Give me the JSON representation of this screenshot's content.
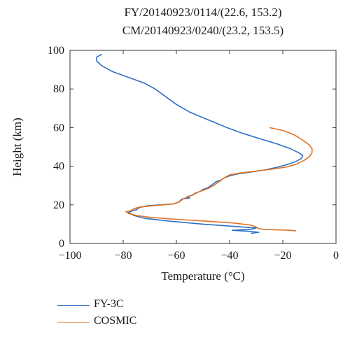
{
  "chart_data": {
    "type": "line",
    "title_lines": [
      "FY/20140923/0114/(22.6, 153.2)",
      "CM/20140923/0240/(23.2, 153.5)"
    ],
    "xlabel": "Temperature (°C)",
    "ylabel": "Height (km)",
    "xlim": [
      -100,
      0
    ],
    "ylim": [
      0,
      100
    ],
    "xticks": [
      -100,
      -80,
      -60,
      -40,
      -20,
      0
    ],
    "yticks": [
      0,
      20,
      40,
      60,
      80,
      100
    ],
    "xtick_labels": [
      "−100",
      "−80",
      "−60",
      "−40",
      "−20",
      "0"
    ],
    "ytick_labels": [
      "0",
      "20",
      "40",
      "60",
      "80",
      "100"
    ],
    "grid": false,
    "legend_position": "bottom-left, below plot",
    "series": [
      {
        "name": "FY-3C",
        "color": "#2e6fc4",
        "points": [
          [
            -32,
            5.2
          ],
          [
            -29,
            5.8
          ],
          [
            -33,
            6.3
          ],
          [
            -39,
            6.8
          ],
          [
            -32,
            7.3
          ],
          [
            -30,
            8.0
          ],
          [
            -38,
            8.8
          ],
          [
            -50,
            10.0
          ],
          [
            -62,
            11.5
          ],
          [
            -72,
            13.0
          ],
          [
            -76,
            14.5
          ],
          [
            -78,
            16.0
          ],
          [
            -76.5,
            17.0
          ],
          [
            -75,
            17.5
          ],
          [
            -74,
            18.5
          ],
          [
            -71,
            19.5
          ],
          [
            -66,
            20.0
          ],
          [
            -61,
            20.5
          ],
          [
            -59,
            21.5
          ],
          [
            -58,
            23.0
          ],
          [
            -55,
            23.5
          ],
          [
            -56,
            24.2
          ],
          [
            -54,
            25.0
          ],
          [
            -53,
            26.0
          ],
          [
            -51,
            27.0
          ],
          [
            -50,
            28.0
          ],
          [
            -48,
            29.0
          ],
          [
            -47,
            30.0
          ],
          [
            -46,
            31.0
          ],
          [
            -45,
            32.0
          ],
          [
            -43,
            33.0
          ],
          [
            -42,
            34.0
          ],
          [
            -40,
            35.0
          ],
          [
            -37,
            36.0
          ],
          [
            -32,
            37.0
          ],
          [
            -27,
            38.0
          ],
          [
            -22,
            39.5
          ],
          [
            -18,
            41.0
          ],
          [
            -15,
            42.5
          ],
          [
            -13,
            44.0
          ],
          [
            -12.5,
            45.5
          ],
          [
            -14,
            47.0
          ],
          [
            -17,
            49.0
          ],
          [
            -22,
            51.5
          ],
          [
            -28,
            54.0
          ],
          [
            -35,
            57.0
          ],
          [
            -41,
            60.0
          ],
          [
            -48,
            64.0
          ],
          [
            -55,
            68.0
          ],
          [
            -60,
            72.0
          ],
          [
            -64,
            76.0
          ],
          [
            -68,
            80.0
          ],
          [
            -72,
            83.0
          ],
          [
            -78,
            86.0
          ],
          [
            -84,
            89.0
          ],
          [
            -88,
            92.0
          ],
          [
            -90,
            94.5
          ],
          [
            -90,
            96.5
          ],
          [
            -88,
            98.0
          ]
        ]
      },
      {
        "name": "COSMIC",
        "color": "#e0711f",
        "points": [
          [
            -15,
            6.5
          ],
          [
            -17,
            6.8
          ],
          [
            -26,
            7.2
          ],
          [
            -29,
            7.6
          ],
          [
            -30,
            8.5
          ],
          [
            -32,
            9.5
          ],
          [
            -38,
            10.5
          ],
          [
            -48,
            11.5
          ],
          [
            -60,
            12.5
          ],
          [
            -70,
            13.5
          ],
          [
            -75,
            14.5
          ],
          [
            -78,
            15.5
          ],
          [
            -79,
            16.5
          ],
          [
            -77,
            17.0
          ],
          [
            -76,
            18.0
          ],
          [
            -74,
            18.8
          ],
          [
            -70,
            19.4
          ],
          [
            -65,
            20.0
          ],
          [
            -61,
            20.5
          ],
          [
            -59,
            21.5
          ],
          [
            -57.5,
            23.0
          ],
          [
            -56,
            24.0
          ],
          [
            -54,
            25.0
          ],
          [
            -52,
            26.5
          ],
          [
            -50,
            27.5
          ],
          [
            -48,
            28.5
          ],
          [
            -46,
            30.0
          ],
          [
            -45,
            31.0
          ],
          [
            -44,
            32.0
          ],
          [
            -43,
            33.0
          ],
          [
            -42,
            34.0
          ],
          [
            -40,
            35.5
          ],
          [
            -36,
            36.5
          ],
          [
            -30,
            37.5
          ],
          [
            -24,
            38.5
          ],
          [
            -19,
            39.5
          ],
          [
            -15,
            41.0
          ],
          [
            -12,
            43.0
          ],
          [
            -10,
            45.0
          ],
          [
            -9,
            47.0
          ],
          [
            -9,
            49.0
          ],
          [
            -10,
            51.0
          ],
          [
            -11,
            52.0
          ],
          [
            -13,
            54.0
          ],
          [
            -16,
            56.5
          ],
          [
            -20,
            58.5
          ],
          [
            -25,
            60.0
          ]
        ]
      }
    ]
  }
}
